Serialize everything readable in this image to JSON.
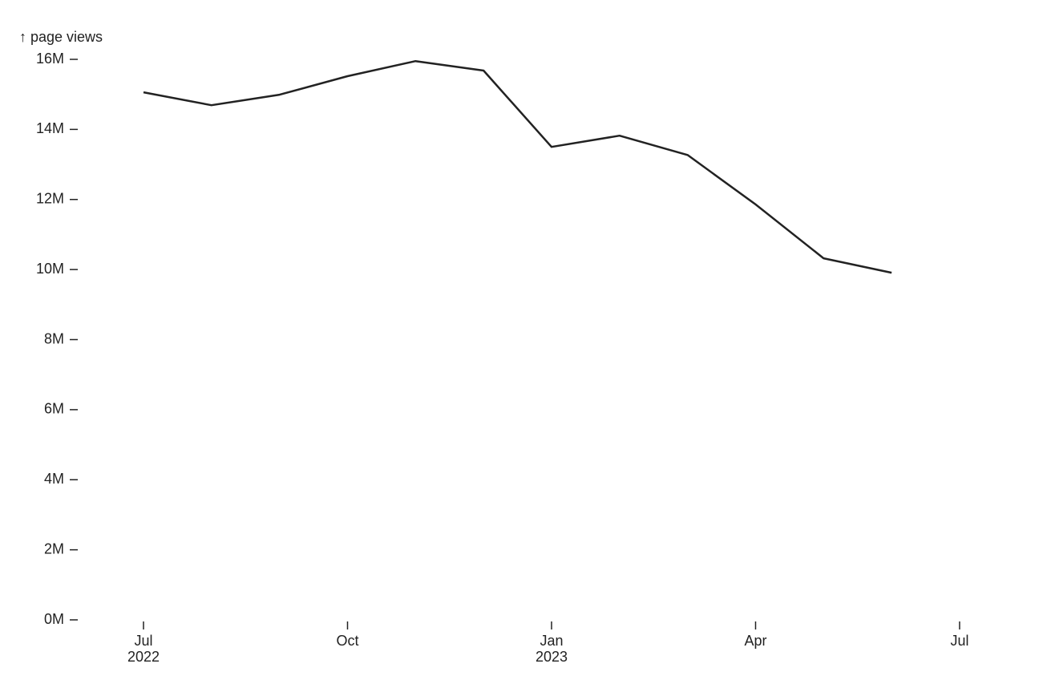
{
  "chart_data": {
    "type": "line",
    "y_label": "↑ page views",
    "x": [
      "2022-07",
      "2022-08",
      "2022-09",
      "2022-10",
      "2022-11",
      "2022-12",
      "2023-01",
      "2023-02",
      "2023-03",
      "2023-04",
      "2023-05",
      "2023-06"
    ],
    "series": [
      {
        "color": "#222222",
        "values": [
          15060000,
          14690000,
          14990000,
          15520000,
          15950000,
          15680000,
          13500000,
          13820000,
          13270000,
          11860000,
          10320000,
          9910000
        ]
      }
    ],
    "xlim": [
      "2022-07",
      "2023-07"
    ],
    "xticks": [
      {
        "value": "2022-07",
        "label": "Jul",
        "year": "2022"
      },
      {
        "value": "2022-10",
        "label": "Oct"
      },
      {
        "value": "2023-01",
        "label": "Jan",
        "year": "2023"
      },
      {
        "value": "2023-04",
        "label": "Apr"
      },
      {
        "value": "2023-07",
        "label": "Jul"
      }
    ],
    "ylim": [
      0,
      16000000
    ],
    "yticks": [
      {
        "value": 0,
        "label": "0M"
      },
      {
        "value": 2000000,
        "label": "2M"
      },
      {
        "value": 4000000,
        "label": "4M"
      },
      {
        "value": 6000000,
        "label": "6M"
      },
      {
        "value": 8000000,
        "label": "8M"
      },
      {
        "value": 10000000,
        "label": "10M"
      },
      {
        "value": 12000000,
        "label": "12M"
      },
      {
        "value": 14000000,
        "label": "14M"
      },
      {
        "value": 16000000,
        "label": "16M"
      }
    ],
    "grid": false
  }
}
